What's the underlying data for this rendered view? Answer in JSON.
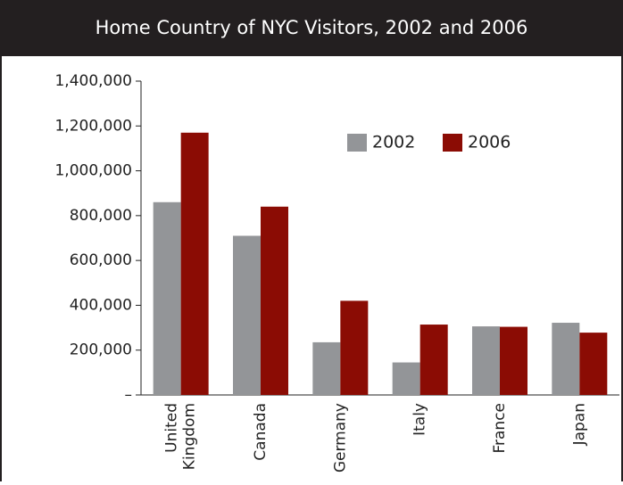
{
  "chart_data": {
    "type": "bar",
    "title": "Home Country of NYC Visitors, 2002 and 2006",
    "categories": [
      "United Kingdom",
      "Canada",
      "Germany",
      "Italy",
      "France",
      "Japan"
    ],
    "series": [
      {
        "name": "2002",
        "color": "#939598",
        "values": [
          860000,
          710000,
          235000,
          145000,
          306000,
          322000
        ]
      },
      {
        "name": "2006",
        "color": "#8b0c04",
        "values": [
          1170000,
          840000,
          420000,
          314000,
          304000,
          278000
        ]
      }
    ],
    "ylim": [
      0,
      1400000
    ],
    "yticks": [
      {
        "value": 0,
        "label": "–"
      },
      {
        "value": 200000,
        "label": "200,000"
      },
      {
        "value": 400000,
        "label": "400,000"
      },
      {
        "value": 600000,
        "label": "600,000"
      },
      {
        "value": 800000,
        "label": "800,000"
      },
      {
        "value": 1000000,
        "label": "1,000,000"
      },
      {
        "value": 1200000,
        "label": "1,200,000"
      },
      {
        "value": 1400000,
        "label": "1,400,000"
      }
    ],
    "legend": "upper right"
  }
}
